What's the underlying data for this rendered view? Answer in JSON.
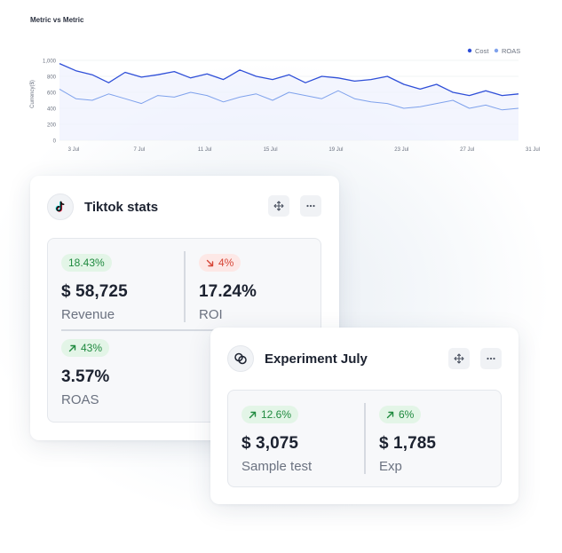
{
  "chart": {
    "title": "Metric vs Metric",
    "ylabel": "Currency($)",
    "legend": [
      {
        "name": "Cost",
        "color": "#2f4fd8"
      },
      {
        "name": "ROAS",
        "color": "#7fa2ec"
      }
    ],
    "yticks": [
      "1,000",
      "800",
      "600",
      "400",
      "200",
      "0"
    ],
    "xticks": [
      "3 Jul",
      "7 Jul",
      "11 Jul",
      "15 Jul",
      "19 Jul",
      "23 Jul",
      "27 Jul",
      "31 Jul"
    ]
  },
  "chart_data": {
    "type": "line",
    "title": "Metric vs Metric",
    "xlabel": "",
    "ylabel": "Currency($)",
    "ylim": [
      0,
      1000
    ],
    "grid": true,
    "legend_placement": "top-right",
    "x": [
      "3 Jul",
      "4 Jul",
      "5 Jul",
      "6 Jul",
      "7 Jul",
      "8 Jul",
      "9 Jul",
      "10 Jul",
      "11 Jul",
      "12 Jul",
      "13 Jul",
      "14 Jul",
      "15 Jul",
      "16 Jul",
      "17 Jul",
      "18 Jul",
      "19 Jul",
      "20 Jul",
      "21 Jul",
      "22 Jul",
      "23 Jul",
      "24 Jul",
      "25 Jul",
      "26 Jul",
      "27 Jul",
      "28 Jul",
      "29 Jul",
      "30 Jul",
      "31 Jul"
    ],
    "series": [
      {
        "name": "Cost",
        "color": "#2f4fd8",
        "values": [
          960,
          870,
          820,
          720,
          850,
          790,
          820,
          860,
          780,
          830,
          760,
          880,
          800,
          760,
          820,
          720,
          800,
          780,
          740,
          760,
          800,
          700,
          640,
          700,
          600,
          560,
          620,
          560,
          580
        ]
      },
      {
        "name": "ROAS",
        "color": "#7fa2ec",
        "values": [
          640,
          520,
          500,
          580,
          520,
          460,
          560,
          540,
          600,
          560,
          480,
          540,
          580,
          500,
          600,
          560,
          520,
          620,
          520,
          480,
          460,
          400,
          420,
          460,
          500,
          400,
          440,
          380,
          400
        ]
      }
    ]
  },
  "tiktok": {
    "title": "Tiktok stats",
    "stats": [
      {
        "badge": "18.43%",
        "value": "$ 58,725",
        "label": "Revenue"
      },
      {
        "badge": "4%",
        "value": "17.24%",
        "label": "ROI"
      },
      {
        "badge": "43%",
        "value": "3.57%",
        "label": "ROAS"
      }
    ]
  },
  "experiment": {
    "title": "Experiment July",
    "stats": [
      {
        "badge": "12.6%",
        "value": "$ 3,075",
        "label": "Sample test"
      },
      {
        "badge": "6%",
        "value": "$ 1,785",
        "label": "Exp"
      }
    ]
  },
  "icons": {
    "move": "move-icon",
    "more": "more-icon",
    "tiktok": "tiktok-icon",
    "experiment": "linked-circles-icon",
    "up": "arrow-up-right-icon",
    "down": "arrow-down-right-icon"
  }
}
